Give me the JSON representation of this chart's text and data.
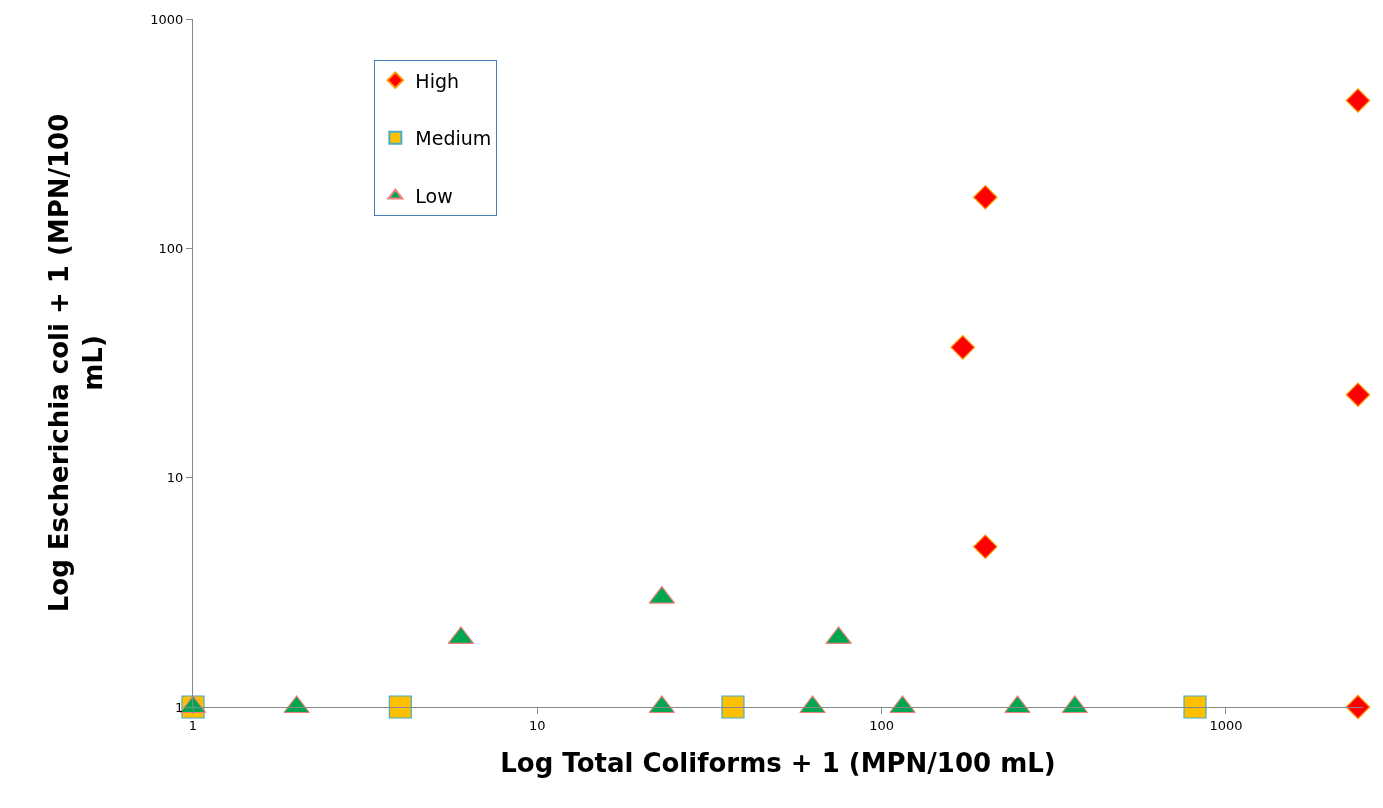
{
  "chart_data": {
    "type": "scatter",
    "xlabel": "Log Total Coliforms + 1 (MPN/100 mL)",
    "ylabel": "Log Escherichia coli + 1 (MPN/100 mL)",
    "log": "xy",
    "xlim": [
      1,
      2500
    ],
    "ylim": [
      1,
      1000
    ],
    "xticks": [
      1,
      10,
      100,
      1000
    ],
    "yticks": [
      1,
      10,
      100,
      1000
    ],
    "legend": "top left",
    "series": [
      {
        "name": "High",
        "color": "#ff0000",
        "marker": "diamond",
        "x": [
          2417,
          200,
          172,
          2417,
          200,
          2417
        ],
        "values": [
          441,
          167,
          37,
          23,
          5,
          1
        ]
      },
      {
        "name": "Medium",
        "color": "#ffc000",
        "marker": "square",
        "x": [
          1,
          4,
          37,
          813
        ],
        "values": [
          1,
          1,
          1,
          1
        ]
      },
      {
        "name": "Low",
        "color": "#00a650",
        "marker": "triangle",
        "x": [
          1,
          2,
          6,
          23,
          23,
          63,
          75,
          115,
          248,
          364
        ],
        "values": [
          1,
          1,
          2,
          3,
          1,
          1,
          2,
          1,
          1,
          1
        ]
      }
    ]
  }
}
